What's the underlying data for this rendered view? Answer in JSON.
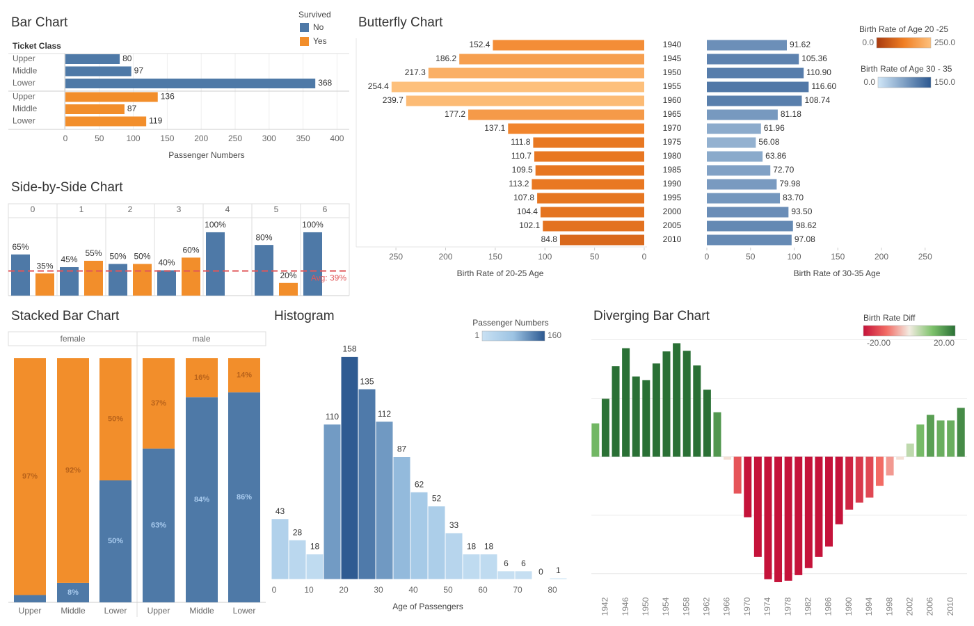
{
  "chart_data": [
    {
      "type": "hbar",
      "title": "Bar Chart",
      "legend_title": "Survived",
      "row_label": "Ticket Class",
      "categories": [
        "Upper",
        "Middle",
        "Lower"
      ],
      "series": [
        {
          "name": "No",
          "color": "#4e79a7",
          "values": [
            80,
            97,
            368
          ]
        },
        {
          "name": "Yes",
          "color": "#f28e2b",
          "values": [
            136,
            87,
            119
          ]
        }
      ],
      "xlabel": "Passenger Numbers",
      "xlim": [
        0,
        418
      ],
      "xticks": [
        0,
        50,
        100,
        150,
        200,
        250,
        300,
        350,
        400
      ],
      "grid": true
    },
    {
      "type": "column",
      "title": "Side-by-Side Chart",
      "categories": [
        "0",
        "1",
        "2",
        "3",
        "4",
        "5",
        "6"
      ],
      "series": [
        {
          "color": "#4e79a7",
          "values": [
            65,
            45,
            50,
            40,
            100,
            80,
            100
          ],
          "value_labels": [
            "65%",
            "45%",
            "50%",
            "40%",
            "100%",
            "80%",
            "100%"
          ]
        },
        {
          "color": "#f28e2b",
          "values": [
            35,
            55,
            50,
            60,
            null,
            20,
            null
          ],
          "value_labels": [
            "35%",
            "55%",
            "50%",
            "60%",
            null,
            "20%",
            null
          ]
        }
      ],
      "ylim": [
        0,
        123
      ],
      "average": {
        "value": 39,
        "label": "Avg: 39%"
      },
      "average_color": "#e15759"
    },
    {
      "type": "butterfly",
      "title": "Butterfly Chart",
      "categories": [
        "1940",
        "1945",
        "1950",
        "1955",
        "1960",
        "1965",
        "1970",
        "1975",
        "1980",
        "1985",
        "1990",
        "1995",
        "2000",
        "2005",
        "2010"
      ],
      "series": [
        {
          "name": "Birth Rate of Age 20 -25",
          "values": [
            152.4,
            186.2,
            217.3,
            254.4,
            239.7,
            177.2,
            137.1,
            111.8,
            110.7,
            109.5,
            113.2,
            107.8,
            104.4,
            102.1,
            84.8
          ],
          "xlabel": "Birth Rate of 20-25 Age",
          "xlim": [
            0,
            290
          ],
          "xticks": [
            0,
            50,
            100,
            150,
            200,
            250
          ],
          "legend": {
            "min": {
              "value": 0,
              "label": "0.0"
            },
            "max": {
              "value": 250,
              "label": "250.0"
            },
            "colors": [
              "#a83a0f",
              "#f07f24",
              "#fdc07c"
            ]
          }
        },
        {
          "name": "Birth Rate of Age 30 - 35",
          "values": [
            91.62,
            105.36,
            110.9,
            116.6,
            108.74,
            81.18,
            61.96,
            56.08,
            63.86,
            72.7,
            79.98,
            83.7,
            93.5,
            98.62,
            97.08
          ],
          "value_labels": [
            "91.62",
            "105.36",
            "110.90",
            "116.60",
            "108.74",
            "81.18",
            "61.96",
            "56.08",
            "63.86",
            "72.70",
            "79.98",
            "83.70",
            "93.50",
            "98.62",
            "97.08"
          ],
          "xlabel": "Birth Rate of 30-35 Age",
          "xlim": [
            0,
            298
          ],
          "xticks": [
            0,
            50,
            100,
            150,
            200,
            250
          ],
          "legend": {
            "min": {
              "value": 0,
              "label": "0.0"
            },
            "max": {
              "value": 150,
              "label": "150.0"
            },
            "colors": [
              "#d0e6f7",
              "#2c5890"
            ]
          }
        }
      ]
    },
    {
      "type": "stacked",
      "title": "Stacked Bar Chart",
      "groups": [
        "female",
        "male"
      ],
      "categories": [
        "Upper",
        "Middle",
        "Lower",
        "Upper",
        "Middle",
        "Lower"
      ],
      "series": [
        {
          "color": "#4e79a7",
          "label_color": "#a9cbee",
          "values": [
            3,
            8,
            50,
            63,
            84,
            86
          ],
          "value_labels": [
            null,
            "8%",
            "50%",
            "63%",
            "84%",
            "86%"
          ]
        },
        {
          "color": "#f28e2b",
          "label_color": "#b8621a",
          "values": [
            97,
            92,
            50,
            37,
            16,
            14
          ],
          "value_labels": [
            "97%",
            "92%",
            "50%",
            "37%",
            "16%",
            "14%"
          ]
        }
      ],
      "ylim": [
        0,
        100
      ]
    },
    {
      "type": "histogram",
      "title": "Histogram",
      "bins": [
        0,
        5,
        10,
        15,
        20,
        25,
        30,
        35,
        40,
        45,
        50,
        55,
        60,
        65,
        70,
        75,
        80,
        85
      ],
      "values": [
        43,
        28,
        18,
        110,
        158,
        135,
        112,
        87,
        62,
        52,
        33,
        18,
        18,
        6,
        6,
        0,
        1
      ],
      "xlabel": "Age of Passengers",
      "xlim": [
        0,
        91
      ],
      "xticks": [
        0,
        10,
        20,
        30,
        40,
        50,
        60,
        70,
        80
      ],
      "ylim": [
        0,
        174
      ],
      "legend": {
        "title": "Passenger Numbers",
        "min": 1,
        "max": 160,
        "colors": [
          "#c9e1f3",
          "#9cc3e3",
          "#2c5890"
        ]
      }
    },
    {
      "type": "diverging",
      "title": "Diverging Bar Chart",
      "x": [
        1940,
        1942,
        1944,
        1946,
        1948,
        1950,
        1952,
        1954,
        1956,
        1958,
        1960,
        1962,
        1964,
        1966,
        1968,
        1970,
        1972,
        1974,
        1976,
        1978,
        1980,
        1982,
        1984,
        1986,
        1988,
        1990,
        1992,
        1994,
        1996,
        1998,
        2000,
        2002,
        2004,
        2006,
        2008,
        2010,
        2012
      ],
      "values": [
        11.4,
        19.8,
        31,
        37.1,
        27.4,
        26.2,
        31.9,
        36,
        38.8,
        36.2,
        31.2,
        22.9,
        15.2,
        -1,
        -12.6,
        -20.7,
        -34.3,
        -41.9,
        -42.9,
        -42.4,
        -40.5,
        -38.1,
        -34.3,
        -30.7,
        -23.1,
        -18.1,
        -15.7,
        -14,
        -10,
        -6.4,
        -1,
        4.5,
        11,
        14.3,
        12.4,
        12.4,
        16.7
      ],
      "xlim": [
        1939.2,
        2013.2
      ],
      "xticks": [
        1942,
        1946,
        1950,
        1954,
        1958,
        1962,
        1966,
        1970,
        1974,
        1978,
        1982,
        1986,
        1990,
        1994,
        1998,
        2002,
        2006,
        2010
      ],
      "ylim": [
        -46,
        42
      ],
      "ygrid": [
        -40,
        -20,
        0,
        20,
        40
      ],
      "legend": {
        "title": "Birth Rate Diff",
        "min": {
          "value": -20,
          "label": "-20.00"
        },
        "max": {
          "value": 20,
          "label": "20.00"
        },
        "colors": [
          "#c5133a",
          "#f26b64",
          "#f3ece2",
          "#7ec26c",
          "#2a7035"
        ]
      }
    }
  ]
}
